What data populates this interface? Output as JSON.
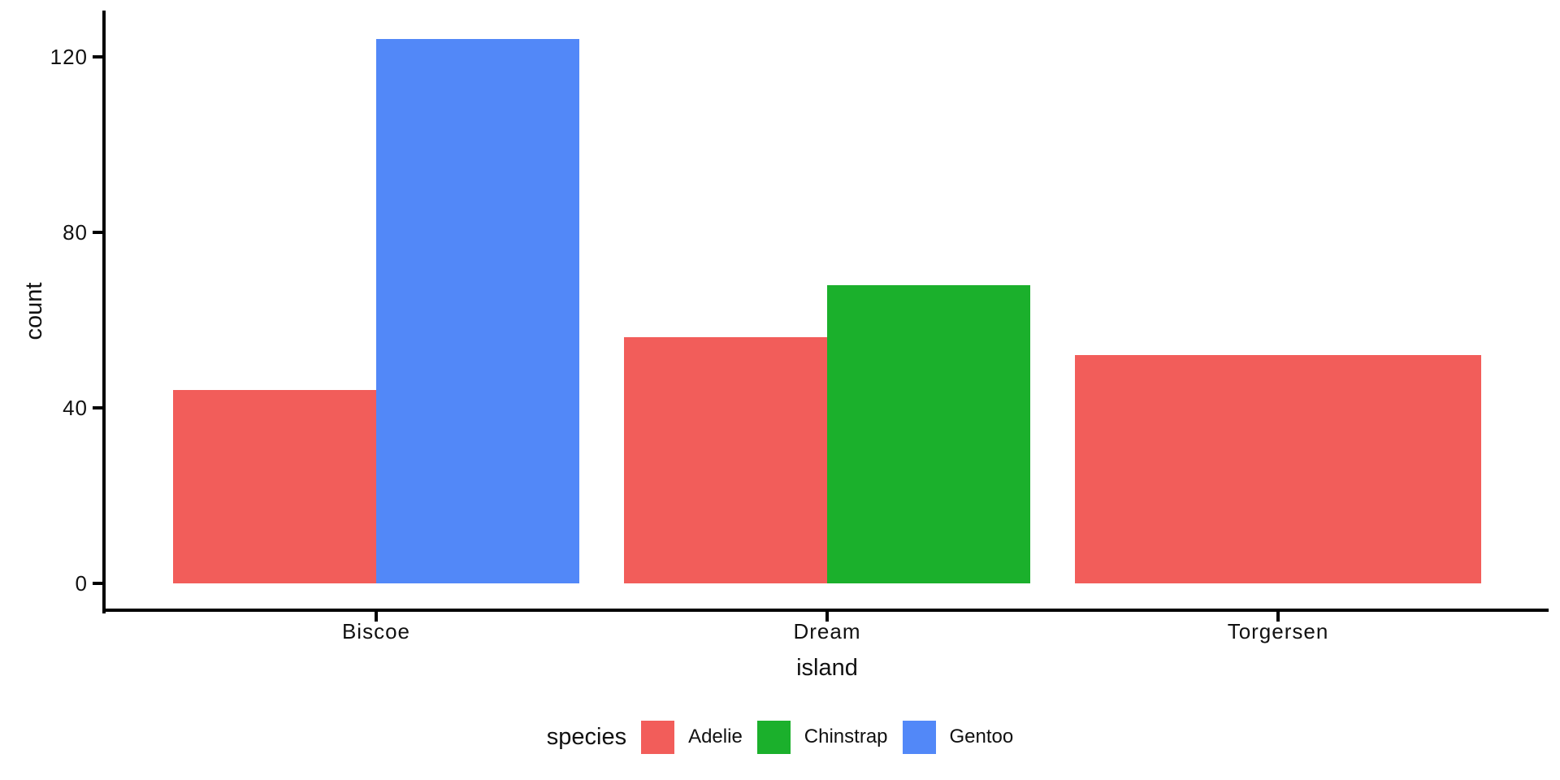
{
  "chart_data": {
    "type": "bar",
    "title": "",
    "xlabel": "island",
    "ylabel": "count",
    "categories": [
      "Biscoe",
      "Dream",
      "Torgersen"
    ],
    "series": [
      {
        "name": "Adelie",
        "color": "#F25D5A",
        "values": [
          44,
          56,
          52
        ]
      },
      {
        "name": "Chinstrap",
        "color": "#1BB02C",
        "values": [
          null,
          68,
          null
        ]
      },
      {
        "name": "Gentoo",
        "color": "#5288F8",
        "values": [
          124,
          null,
          null
        ]
      }
    ],
    "y_ticks": [
      0,
      40,
      80,
      120
    ],
    "ylim": [
      0,
      124
    ],
    "bar_layout": "dodge",
    "grid": "off",
    "axis_color": "#000000",
    "text_color": "#111111",
    "background": "#FFFFFF",
    "legend": {
      "title": "species",
      "position": "bottom",
      "entries": [
        "Adelie",
        "Chinstrap",
        "Gentoo"
      ]
    }
  }
}
